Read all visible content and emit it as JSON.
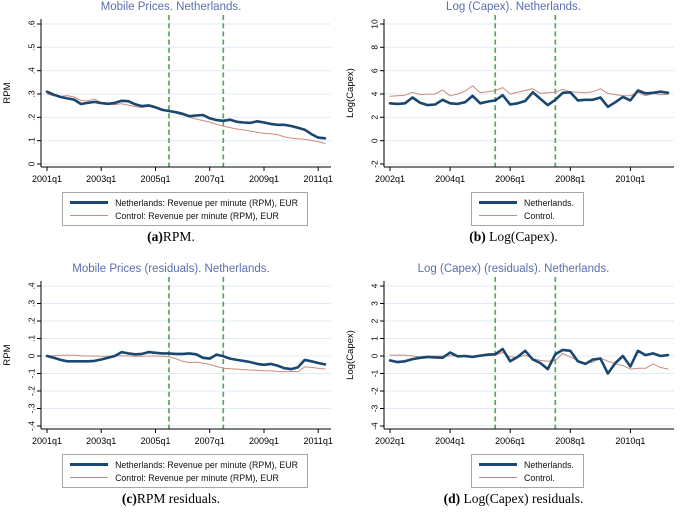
{
  "colors": {
    "netherlands": "#1a476f",
    "control": "#cb8a7f",
    "event_line": "#57a75c",
    "title": "#5a6fb0",
    "grid": "#e2ebf5",
    "axis": "#000000",
    "legend_border": "#a6a6a6"
  },
  "chart_data": [
    {
      "type": "line",
      "title": "Mobile Prices. Netherlands.",
      "ylabel": "RPM",
      "ylim": [
        0,
        0.6
      ],
      "ytick_vals": [
        0.6,
        0.5,
        0.4,
        0.3,
        0.2,
        0.1,
        0
      ],
      "ytick_labels": [
        ".6",
        ".5",
        ".4",
        ".3",
        ".2",
        ".1",
        "0"
      ],
      "x_start": "2001q1",
      "xtick_idx": [
        0,
        8,
        16,
        24,
        32,
        40
      ],
      "xtick_labels": [
        "2001q1",
        "2003q1",
        "2005q1",
        "2007q1",
        "2009q1",
        "2011q1"
      ],
      "event_lines_idx": [
        18,
        26
      ],
      "legend": [
        "Netherlands: Revenue per minute (RPM), EUR",
        "Control: Revenue per minute (RPM), EUR"
      ],
      "caption_label": "(a)",
      "caption_text": "RPM.",
      "series": [
        {
          "name": "Netherlands: Revenue per minute (RPM), EUR",
          "color_key": "netherlands",
          "values": [
            0.31,
            0.297,
            0.287,
            0.281,
            0.276,
            0.257,
            0.262,
            0.266,
            0.261,
            0.258,
            0.262,
            0.271,
            0.269,
            0.256,
            0.248,
            0.251,
            0.243,
            0.232,
            0.227,
            0.222,
            0.215,
            0.205,
            0.208,
            0.21,
            0.196,
            0.188,
            0.185,
            0.19,
            0.181,
            0.178,
            0.176,
            0.183,
            0.178,
            0.172,
            0.168,
            0.168,
            0.163,
            0.155,
            0.147,
            0.128,
            0.113,
            0.11
          ]
        },
        {
          "name": "Control: Revenue per minute (RPM), EUR",
          "color_key": "control",
          "values": [
            0.3,
            0.292,
            0.29,
            0.293,
            0.287,
            0.272,
            0.27,
            0.278,
            0.263,
            0.256,
            0.255,
            0.258,
            0.252,
            0.246,
            0.242,
            0.247,
            0.241,
            0.23,
            0.225,
            0.219,
            0.21,
            0.2,
            0.193,
            0.186,
            0.18,
            0.17,
            0.163,
            0.156,
            0.15,
            0.146,
            0.141,
            0.136,
            0.131,
            0.13,
            0.126,
            0.116,
            0.111,
            0.108,
            0.106,
            0.101,
            0.096,
            0.088
          ]
        }
      ]
    },
    {
      "type": "line",
      "title": "Log (Capex). Netherlands.",
      "ylabel": "Log(Capex)",
      "ylim": [
        -2,
        10
      ],
      "ytick_vals": [
        10,
        8,
        6,
        4,
        2,
        0,
        -2
      ],
      "ytick_labels": [
        "10",
        "8",
        "6",
        "4",
        "2",
        "0",
        "-2"
      ],
      "x_start": "2002q1",
      "xtick_idx": [
        0,
        8,
        16,
        24,
        32
      ],
      "xtick_labels": [
        "2002q1",
        "2004q1",
        "2006q1",
        "2008q1",
        "2010q1"
      ],
      "event_lines_idx": [
        14,
        22
      ],
      "legend": [
        "Netherlands.",
        "Control."
      ],
      "caption_label": "(b)",
      "caption_text": " Log(Capex).",
      "series": [
        {
          "name": "Netherlands.",
          "color_key": "netherlands",
          "values": [
            3.2,
            3.15,
            3.2,
            3.7,
            3.25,
            3.05,
            3.1,
            3.5,
            3.2,
            3.15,
            3.3,
            3.85,
            3.2,
            3.35,
            3.45,
            3.9,
            3.1,
            3.2,
            3.4,
            4.15,
            3.6,
            3.05,
            3.5,
            4.1,
            4.15,
            3.45,
            3.5,
            3.5,
            3.7,
            2.9,
            3.3,
            3.75,
            3.45,
            4.3,
            4.05,
            4.1,
            4.2,
            4.1
          ]
        },
        {
          "name": "Control.",
          "color_key": "control",
          "values": [
            3.8,
            3.85,
            3.9,
            4.15,
            3.95,
            3.98,
            4.0,
            4.35,
            3.85,
            4.0,
            4.25,
            4.7,
            4.1,
            4.2,
            4.3,
            4.55,
            4.0,
            4.15,
            4.3,
            4.45,
            4.05,
            4.1,
            4.15,
            4.4,
            4.2,
            4.15,
            4.1,
            4.2,
            4.45,
            4.05,
            3.95,
            3.85,
            3.85,
            4.15,
            3.85,
            4.05,
            3.95,
            3.95
          ]
        }
      ]
    },
    {
      "type": "line",
      "title": "Mobile Prices (residuals). Netherlands.",
      "ylabel": "RPM",
      "ylim": [
        -0.4,
        0.4
      ],
      "ytick_vals": [
        0.4,
        0.3,
        0.2,
        0.1,
        0,
        -0.1,
        -0.2,
        -0.3,
        -0.4
      ],
      "ytick_labels": [
        ".4",
        ".3",
        ".2",
        ".1",
        "0",
        "-.1",
        "-.2",
        "-.3",
        "-.4"
      ],
      "x_start": "2001q1",
      "xtick_idx": [
        0,
        8,
        16,
        24,
        32,
        40
      ],
      "xtick_labels": [
        "2001q1",
        "2003q1",
        "2005q1",
        "2007q1",
        "2009q1",
        "2011q1"
      ],
      "event_lines_idx": [
        18,
        26
      ],
      "legend": [
        "Netherlands: Revenue per minute (RPM), EUR",
        "Control: Revenue per minute (RPM), EUR"
      ],
      "caption_label": "(c)",
      "caption_text": "RPM residuals.",
      "series": [
        {
          "name": "Netherlands: Revenue per minute (RPM), EUR",
          "color_key": "netherlands",
          "values": [
            0.0,
            -0.01,
            -0.022,
            -0.03,
            -0.03,
            -0.03,
            -0.03,
            -0.028,
            -0.02,
            -0.01,
            0.0,
            0.022,
            0.015,
            0.01,
            0.012,
            0.022,
            0.018,
            0.015,
            0.015,
            0.012,
            0.012,
            0.015,
            0.01,
            -0.01,
            -0.015,
            0.008,
            -0.002,
            -0.015,
            -0.022,
            -0.028,
            -0.035,
            -0.045,
            -0.05,
            -0.045,
            -0.055,
            -0.07,
            -0.075,
            -0.065,
            -0.022,
            -0.03,
            -0.04,
            -0.048
          ]
        },
        {
          "name": "Control: Revenue per minute (RPM), EUR",
          "color_key": "control",
          "values": [
            0.0,
            0.002,
            0.004,
            0.005,
            0.005,
            0.002,
            0.0,
            0.0,
            -0.002,
            -0.002,
            0.0,
            0.002,
            0.0,
            -0.002,
            -0.002,
            0.0,
            0.0,
            -0.002,
            -0.005,
            -0.015,
            -0.03,
            -0.038,
            -0.035,
            -0.042,
            -0.048,
            -0.06,
            -0.07,
            -0.073,
            -0.075,
            -0.078,
            -0.08,
            -0.082,
            -0.085,
            -0.085,
            -0.088,
            -0.09,
            -0.088,
            -0.09,
            -0.062,
            -0.065,
            -0.07,
            -0.075
          ]
        }
      ]
    },
    {
      "type": "line",
      "title": "Log (Capex) (residuals). Netherlands.",
      "ylabel": "Log(Capex)",
      "ylim": [
        -4,
        4
      ],
      "ytick_vals": [
        4,
        3,
        2,
        1,
        0,
        -1,
        -2,
        -3,
        -4
      ],
      "ytick_labels": [
        "4",
        "3",
        "2",
        "1",
        "0",
        "-1",
        "-2",
        "-3",
        "-4"
      ],
      "x_start": "2002q1",
      "xtick_idx": [
        0,
        8,
        16,
        24,
        32
      ],
      "xtick_labels": [
        "2002q1",
        "2004q1",
        "2006q1",
        "2008q1",
        "2010q1"
      ],
      "event_lines_idx": [
        14,
        22
      ],
      "legend": [
        "Netherlands.",
        "Control."
      ],
      "caption_label": "(d)",
      "caption_text": " Log(Capex) residuals.",
      "series": [
        {
          "name": "Netherlands.",
          "color_key": "netherlands",
          "values": [
            -0.25,
            -0.35,
            -0.3,
            -0.18,
            -0.1,
            -0.05,
            -0.08,
            -0.1,
            0.2,
            -0.02,
            0.0,
            -0.05,
            0.02,
            0.08,
            0.1,
            0.4,
            -0.3,
            -0.05,
            0.3,
            -0.2,
            -0.4,
            -0.75,
            0.1,
            0.35,
            0.3,
            -0.3,
            -0.45,
            -0.2,
            -0.15,
            -1.0,
            -0.4,
            0.0,
            -0.6,
            0.3,
            0.05,
            0.15,
            0.0,
            0.05
          ]
        },
        {
          "name": "Control.",
          "color_key": "control",
          "values": [
            0.05,
            0.05,
            0.05,
            0.0,
            -0.05,
            -0.02,
            0.0,
            0.0,
            0.02,
            0.0,
            0.0,
            0.0,
            0.0,
            0.02,
            0.05,
            0.2,
            -0.05,
            -0.08,
            0.05,
            -0.15,
            -0.25,
            -0.3,
            -0.25,
            0.15,
            -0.05,
            -0.25,
            -0.4,
            -0.35,
            -0.1,
            -0.3,
            -0.45,
            -0.55,
            -0.75,
            -0.7,
            -0.7,
            -0.45,
            -0.65,
            -0.75
          ]
        }
      ]
    }
  ]
}
